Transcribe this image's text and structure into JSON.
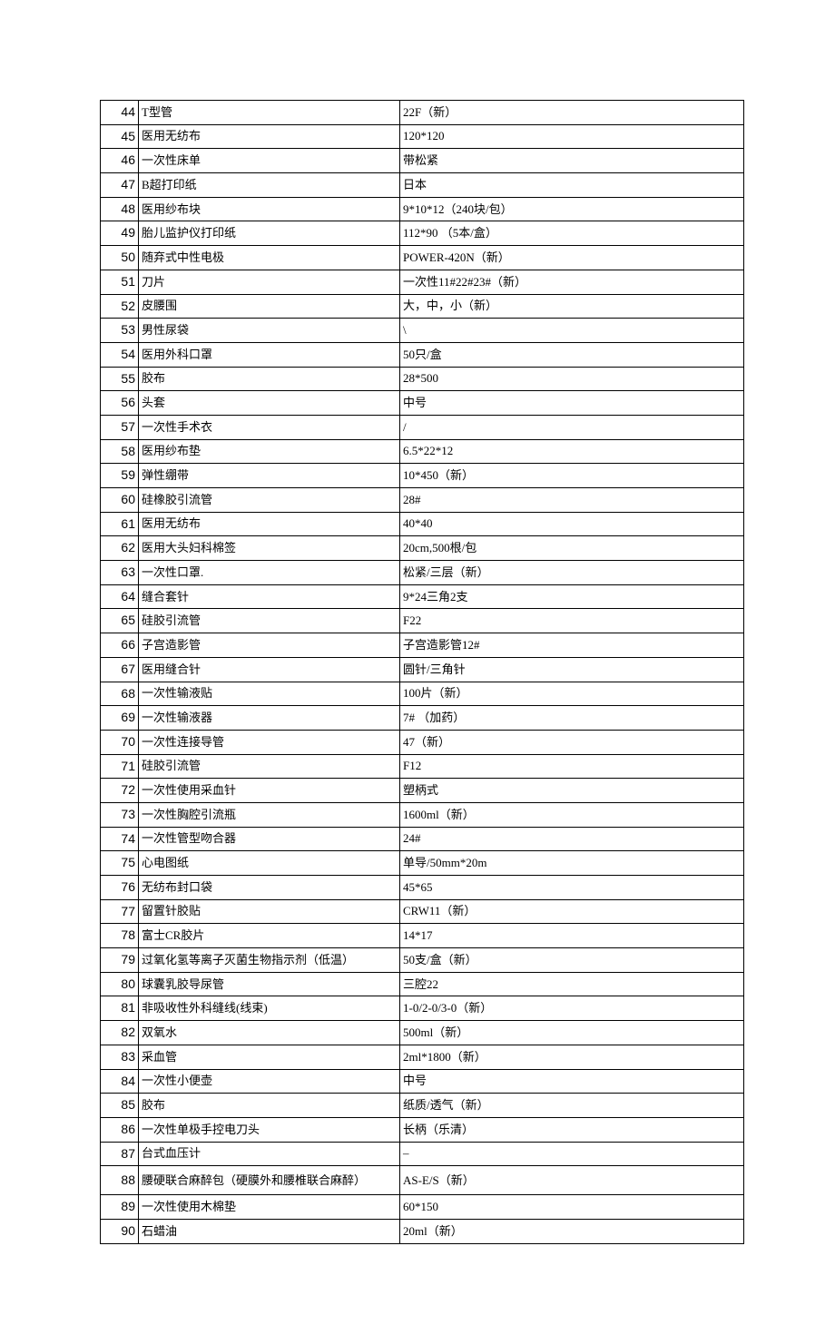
{
  "table": {
    "columns": {
      "num_width": 42,
      "name_width": 288,
      "spec_width": "auto"
    },
    "border_color": "#000000",
    "background_color": "#ffffff",
    "font_size": 13,
    "num_font_size": 14,
    "rows": [
      {
        "num": "44",
        "name": "T型管",
        "spec": "22F（新）"
      },
      {
        "num": "45",
        "name": "医用无纺布",
        "spec": "120*120"
      },
      {
        "num": "46",
        "name": "一次性床单",
        "spec": "带松紧"
      },
      {
        "num": "47",
        "name": "B超打印纸",
        "spec": "日本"
      },
      {
        "num": "48",
        "name": "医用纱布块",
        "spec": "9*10*12（240块/包）"
      },
      {
        "num": "49",
        "name": "胎儿监护仪打印纸",
        "spec": "112*90 （5本/盒）"
      },
      {
        "num": "50",
        "name": "随弃式中性电极",
        "spec": "POWER-420N（新）"
      },
      {
        "num": "51",
        "name": "刀片",
        "spec": "一次性11#22#23#（新）"
      },
      {
        "num": "52",
        "name": "皮腰围",
        "spec": "大，中，小（新）"
      },
      {
        "num": "53",
        "name": "男性尿袋",
        "spec": "\\"
      },
      {
        "num": "54",
        "name": "医用外科口罩",
        "spec": "50只/盒"
      },
      {
        "num": "55",
        "name": "胶布",
        "spec": "28*500"
      },
      {
        "num": "56",
        "name": "头套",
        "spec": "中号"
      },
      {
        "num": "57",
        "name": "一次性手术衣",
        "spec": "/"
      },
      {
        "num": "58",
        "name": "医用纱布垫",
        "spec": "6.5*22*12"
      },
      {
        "num": "59",
        "name": "弹性绷带",
        "spec": "10*450（新）"
      },
      {
        "num": "60",
        "name": "硅橡胶引流管",
        "spec": "28#"
      },
      {
        "num": "61",
        "name": "医用无纺布",
        "spec": "40*40"
      },
      {
        "num": "62",
        "name": "医用大头妇科棉签",
        "spec": "20cm,500根/包"
      },
      {
        "num": "63",
        "name": "一次性口罩.",
        "spec": "松紧/三层（新）"
      },
      {
        "num": "64",
        "name": "缝合套针",
        "spec": "9*24三角2支"
      },
      {
        "num": "65",
        "name": "硅胶引流管",
        "spec": "F22"
      },
      {
        "num": "66",
        "name": "子宫造影管",
        "spec": "子宫造影管12#"
      },
      {
        "num": "67",
        "name": "医用缝合针",
        "spec": "圆针/三角针"
      },
      {
        "num": "68",
        "name": "一次性输液贴",
        "spec": "100片（新）"
      },
      {
        "num": "69",
        "name": "一次性输液器",
        "spec": "7# （加药）"
      },
      {
        "num": "70",
        "name": "一次性连接导管",
        "spec": "47（新）"
      },
      {
        "num": "71",
        "name": "硅胶引流管",
        "spec": "F12"
      },
      {
        "num": "72",
        "name": "一次性使用采血针",
        "spec": "塑柄式"
      },
      {
        "num": "73",
        "name": "一次性胸腔引流瓶",
        "spec": "1600ml（新）"
      },
      {
        "num": "74",
        "name": "一次性管型吻合器",
        "spec": "24#"
      },
      {
        "num": "75",
        "name": "心电图纸",
        "spec": "单导/50mm*20m"
      },
      {
        "num": "76",
        "name": "无纺布封口袋",
        "spec": "45*65"
      },
      {
        "num": "77",
        "name": "留置针胶贴",
        "spec": "CRW11（新）"
      },
      {
        "num": "78",
        "name": "富士CR胶片",
        "spec": "14*17"
      },
      {
        "num": "79",
        "name": "过氧化氢等离子灭菌生物指示剂（低温）",
        "spec": "50支/盒（新）"
      },
      {
        "num": "80",
        "name": "球囊乳胶导尿管",
        "spec": "三腔22"
      },
      {
        "num": "81",
        "name": "非吸收性外科缝线(线束)",
        "spec": "1-0/2-0/3-0（新）"
      },
      {
        "num": "82",
        "name": "双氧水",
        "spec": "500ml（新）"
      },
      {
        "num": "83",
        "name": "采血管",
        "spec": "2ml*1800（新）"
      },
      {
        "num": "84",
        "name": "一次性小便壶",
        "spec": "中号"
      },
      {
        "num": "85",
        "name": "胶布",
        "spec": "纸质/透气（新）"
      },
      {
        "num": "86",
        "name": "一次性单极手控电刀头",
        "spec": "长柄（乐清）"
      },
      {
        "num": "87",
        "name": "台式血压计",
        "spec": "–"
      },
      {
        "num": "88",
        "name": "腰硬联合麻醉包（硬膜外和腰椎联合麻醉）",
        "spec": "AS-E/S（新）",
        "tall": true
      },
      {
        "num": "89",
        "name": "一次性使用木棉垫",
        "spec": "60*150"
      },
      {
        "num": "90",
        "name": "石蜡油",
        "spec": "20ml（新）"
      }
    ]
  }
}
